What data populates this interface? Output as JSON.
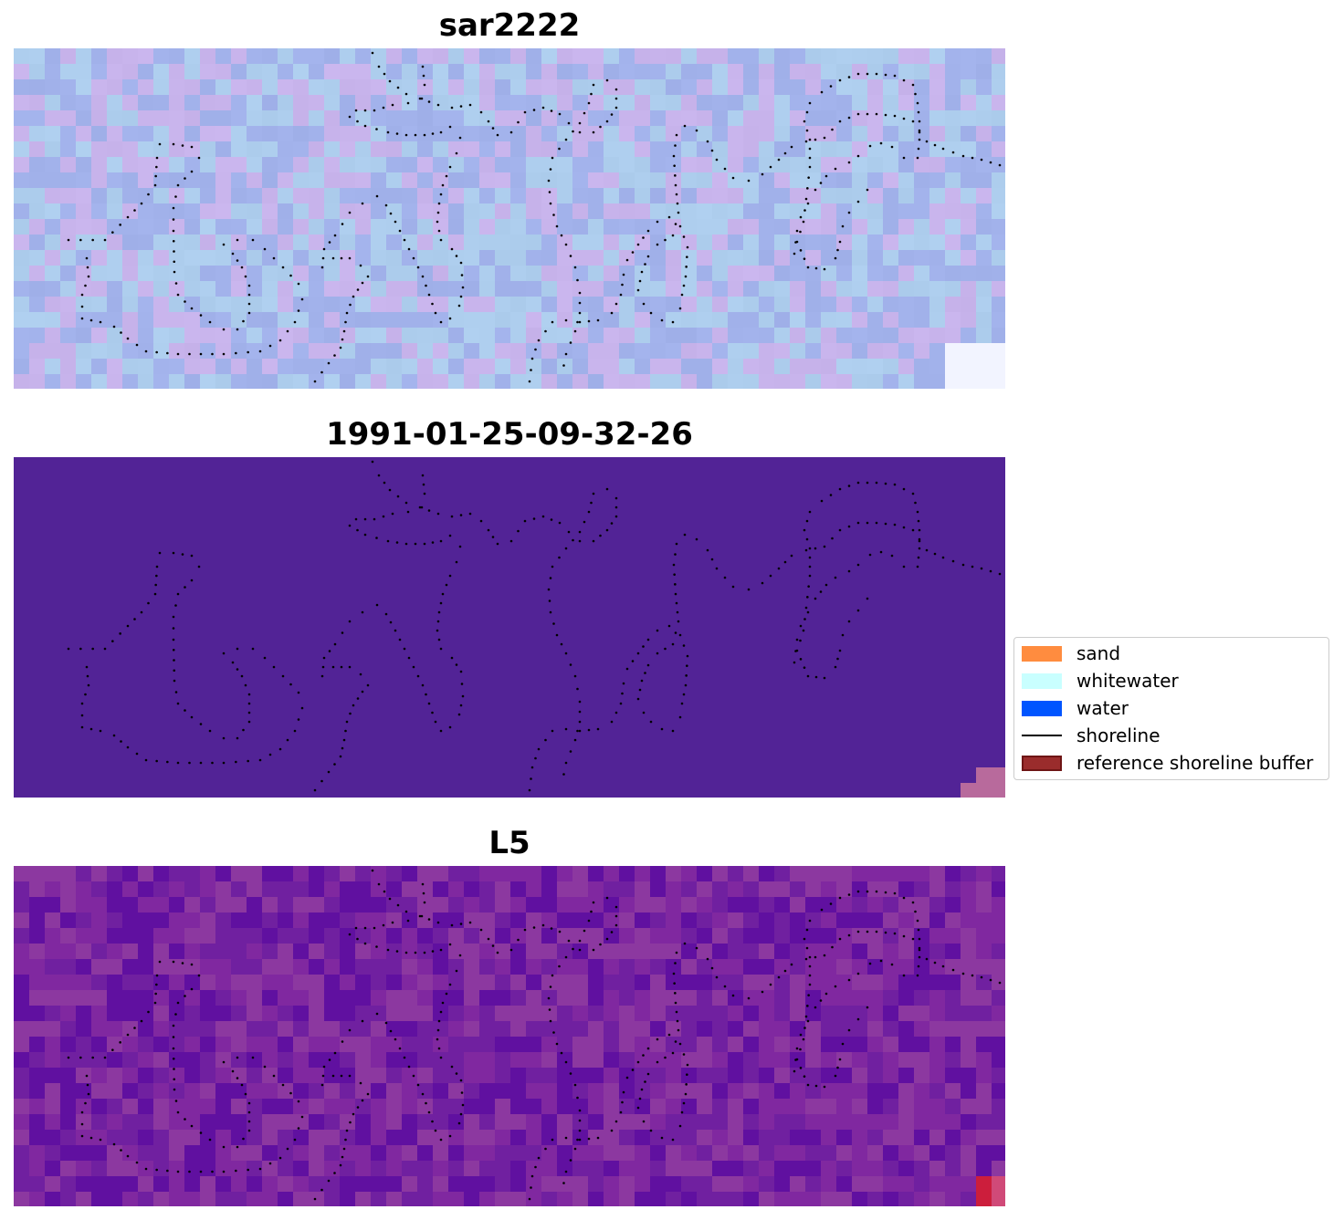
{
  "panels": [
    {
      "title": "sar2222",
      "style": "rgb"
    },
    {
      "title": "1991-01-25-09-32-26",
      "style": "classified"
    },
    {
      "title": "L5",
      "style": "index"
    }
  ],
  "legend": {
    "items": [
      {
        "label": "sand",
        "kind": "patch",
        "color": "#ff8c3f"
      },
      {
        "label": "whitewater",
        "kind": "patch",
        "color": "#c9ffff"
      },
      {
        "label": "water",
        "kind": "patch",
        "color": "#0055ff"
      },
      {
        "label": "shoreline",
        "kind": "line",
        "color": "#000000"
      },
      {
        "label": "reference shoreline buffer",
        "kind": "patch",
        "color": "#9a2c2c",
        "edge": "#6e1515"
      }
    ]
  }
}
